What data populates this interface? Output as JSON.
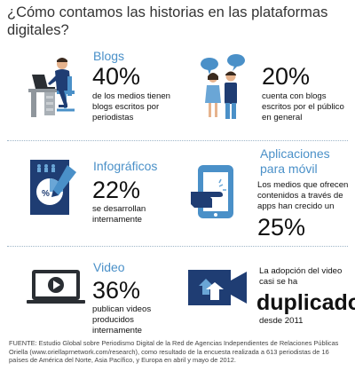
{
  "title": "¿Cómo contamos las historias en las plataformas digitales?",
  "blogs": {
    "heading": "Blogs",
    "stat": "40%",
    "description": "de los medios tienen blogs escritos por periodistas"
  },
  "public_blogs": {
    "stat": "20%",
    "description": "cuenta con blogs escritos por el público en general"
  },
  "infographics": {
    "heading": "Infográficos",
    "stat": "22%",
    "description": "se desarrollan internamente"
  },
  "apps": {
    "heading_line1": "Aplicaciones",
    "heading_line2": "para móvil",
    "description": "Los medios que ofrecen contenidos a través de apps han crecido un",
    "stat": "25%"
  },
  "video": {
    "heading": "Video",
    "stat": "36%",
    "description": "publican videos producidos internamente"
  },
  "video_growth": {
    "description": "La adopción del video casi se ha",
    "stat": "duplicado",
    "since": "desde 2011"
  },
  "footer": "FUENTE: Estudio Global sobre Periodismo Digital de la Red de Agencias Independientes de Relaciones Públicas Oriella (www.oriellaprnetwork.com/research), como resultado de la encuesta realizada a 613 periodistas de 16 países de América del Norte, Asia Pacífico, y Europa en abril y mayo de 2012.",
  "icons": {
    "blogs": "person-at-desk-icon",
    "public_blogs": "people-talking-icon",
    "infographics": "pie-chart-document-icon",
    "apps": "tablet-touch-icon",
    "video": "laptop-play-icon",
    "video_growth": "video-camera-upload-icon"
  },
  "colors": {
    "accent": "#4a90c8",
    "dark_blue": "#1f3d73",
    "light_blue": "#6aa6d6"
  }
}
